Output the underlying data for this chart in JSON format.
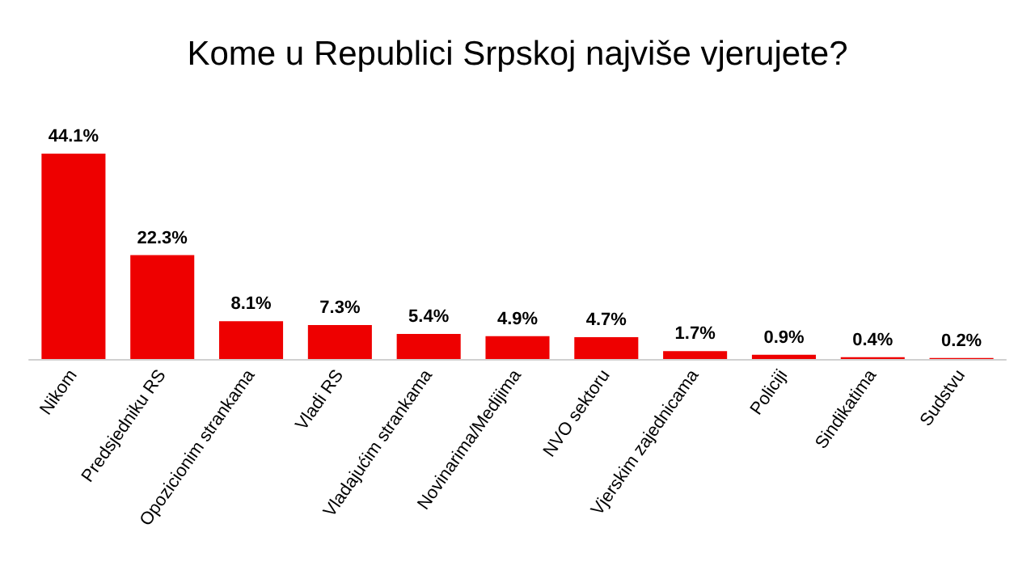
{
  "chart_data": {
    "type": "bar",
    "title": "Kome u Republici Srpskoj najviše vjerujete?",
    "categories": [
      "Nikom",
      "Predsjedniku RS",
      "Opozicionim strankama",
      "Vladi RS",
      "Vladajućim strankama",
      "Novinarima/Medijima",
      "NVO sektoru",
      "Vjerskim zajednicama",
      "Policiji",
      "Sindikatima",
      "Sudstvu"
    ],
    "values": [
      44.1,
      22.3,
      8.1,
      7.3,
      5.4,
      4.9,
      4.7,
      1.7,
      0.9,
      0.4,
      0.2
    ],
    "value_labels": [
      "44.1%",
      "22.3%",
      "8.1%",
      "7.3%",
      "5.4%",
      "4.9%",
      "4.7%",
      "1.7%",
      "0.9%",
      "0.4%",
      "0.2%"
    ],
    "color": "#ee0000"
  }
}
